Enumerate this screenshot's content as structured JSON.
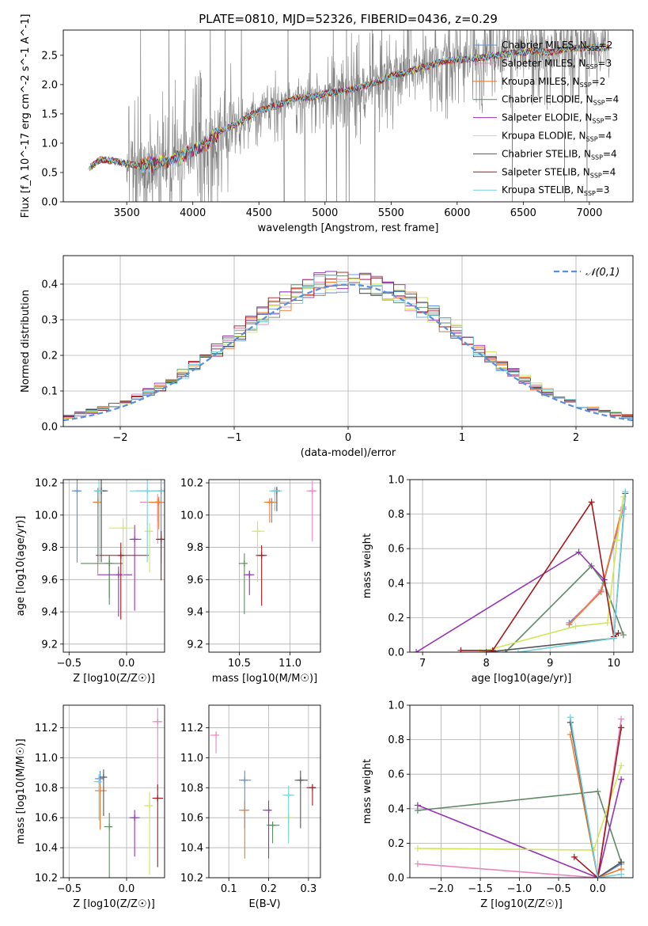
{
  "title": "PLATE=0810, MJD=52326, FIBERID=0436, z=0.29",
  "colors": {
    "series": [
      "#5b8ede",
      "#e985bd",
      "#ee7a2e",
      "#5e8a65",
      "#9633b5",
      "#cfe75a",
      "#555555",
      "#a3181d",
      "#73d1dd"
    ],
    "data": "#808080",
    "gaussian": "#5b8ede",
    "grid": "#b0b0b0"
  },
  "legend": {
    "series": [
      {
        "library": "Chabrier MILES",
        "n": "2"
      },
      {
        "library": "Salpeter MILES",
        "n": "3"
      },
      {
        "library": "Kroupa MILES",
        "n": "2"
      },
      {
        "library": "Chabrier ELODIE",
        "n": "4"
      },
      {
        "library": "Salpeter ELODIE",
        "n": "3"
      },
      {
        "library": "Kroupa ELODIE",
        "n": "4"
      },
      {
        "library": "Chabrier STELIB",
        "n": "4"
      },
      {
        "library": "Salpeter STELIB",
        "n": "4"
      },
      {
        "library": "Kroupa STELIB",
        "n": "3"
      }
    ]
  },
  "chart_data": [
    {
      "id": "spectrum",
      "type": "line",
      "xlabel": "wavelength [Angstrom, rest frame]",
      "ylabel": "Flux [f_λ 10^-17 erg cm^-2 s^-1 A^-1]",
      "xlim": [
        3020,
        7330
      ],
      "ylim": [
        0,
        2.93
      ],
      "xticks": [
        3500,
        4000,
        4500,
        5000,
        5500,
        6000,
        6500,
        7000
      ],
      "yticks": [
        0.0,
        0.5,
        1.0,
        1.5,
        2.0,
        2.5
      ],
      "grid": false,
      "legend_position": "top-right",
      "data_range": [
        3210,
        7150
      ],
      "model_continuum": [
        [
          3210,
          0.57
        ],
        [
          3300,
          0.72
        ],
        [
          3400,
          0.7
        ],
        [
          3500,
          0.65
        ],
        [
          3600,
          0.61
        ],
        [
          3700,
          0.64
        ],
        [
          3800,
          0.69
        ],
        [
          3900,
          0.76
        ],
        [
          4000,
          0.86
        ],
        [
          4100,
          0.98
        ],
        [
          4200,
          1.2
        ],
        [
          4300,
          1.3
        ],
        [
          4400,
          1.42
        ],
        [
          4500,
          1.55
        ],
        [
          4600,
          1.62
        ],
        [
          4700,
          1.7
        ],
        [
          4800,
          1.78
        ],
        [
          4900,
          1.78
        ],
        [
          5000,
          1.85
        ],
        [
          5100,
          1.88
        ],
        [
          5200,
          1.92
        ],
        [
          5300,
          1.98
        ],
        [
          5400,
          2.05
        ],
        [
          5500,
          2.15
        ],
        [
          5600,
          2.2
        ],
        [
          5700,
          2.27
        ],
        [
          5800,
          2.33
        ],
        [
          5900,
          2.4
        ],
        [
          6000,
          2.42
        ],
        [
          6100,
          2.44
        ],
        [
          6200,
          2.46
        ],
        [
          6300,
          2.5
        ],
        [
          6400,
          2.53
        ],
        [
          6500,
          2.55
        ],
        [
          6600,
          2.57
        ],
        [
          6700,
          2.55
        ],
        [
          6800,
          2.6
        ],
        [
          6900,
          2.62
        ],
        [
          7000,
          2.63
        ],
        [
          7150,
          2.63
        ]
      ]
    },
    {
      "id": "residuals",
      "type": "histogram",
      "xlabel": "(data-model)/error",
      "ylabel": "Normed distribution",
      "xlim": [
        -2.5,
        2.5
      ],
      "ylim": [
        0,
        0.48
      ],
      "xticks": [
        -2,
        -1,
        0,
        1,
        2
      ],
      "yticks": [
        0.0,
        0.1,
        0.2,
        0.3,
        0.4
      ],
      "grid": true,
      "legend_position": "top-right",
      "legend_label": "𝒩(0,1)",
      "bins": 50,
      "bin_range": [
        -2.5,
        2.5
      ]
    },
    {
      "id": "age_vs_Z",
      "type": "scatter",
      "xlabel": "Z [log10(Z/Z☉)]",
      "ylabel": "age [log10(age/yr)]",
      "xlim": [
        -0.55,
        0.33
      ],
      "ylim": [
        9.15,
        10.22
      ],
      "xticks": [
        -0.5,
        0.0
      ],
      "xtick_labels": [
        "−0.5",
        "0.0"
      ],
      "yticks": [
        9.2,
        9.4,
        9.6,
        9.8,
        10.0,
        10.2
      ],
      "grid": true,
      "series": [
        {
          "x": [
            -0.43,
            0.3
          ],
          "y": [
            10.15,
            10.15
          ]
        },
        {
          "x": [
            0.27,
            0.27
          ],
          "y": [
            10.08,
            10.08
          ]
        },
        {
          "x": [
            -0.25,
            0.28
          ],
          "y": [
            10.08,
            10.08
          ]
        },
        {
          "x": [
            -0.15,
            -0.15
          ],
          "y": [
            9.7,
            9.7
          ]
        },
        {
          "x": [
            0.07,
            -0.07
          ],
          "y": [
            9.85,
            9.63
          ]
        },
        {
          "x": [
            0.2,
            -0.03
          ],
          "y": [
            9.9,
            9.92
          ]
        },
        {
          "x": [
            -0.22,
            -0.22
          ],
          "y": [
            10.15,
            10.15
          ]
        },
        {
          "x": [
            0.3,
            -0.05
          ],
          "y": [
            9.85,
            9.75
          ]
        },
        {
          "x": [
            -0.24,
            0.18
          ],
          "y": [
            10.15,
            10.15
          ]
        }
      ]
    },
    {
      "id": "age_vs_mass",
      "type": "scatter",
      "xlabel": "mass [log10(M/M☉)]",
      "ylabel": "",
      "xlim": [
        10.2,
        11.3
      ],
      "ylim": [
        9.15,
        10.22
      ],
      "xticks": [
        10.5,
        11.0
      ],
      "yticks": [
        9.2,
        9.4,
        9.6,
        9.8,
        10.0,
        10.2
      ],
      "grid": true,
      "series": [
        {
          "x": [
            10.82
          ],
          "y": [
            10.08
          ]
        },
        {
          "x": [
            11.22
          ],
          "y": [
            10.15
          ]
        },
        {
          "x": [
            10.8
          ],
          "y": [
            10.08
          ]
        },
        {
          "x": [
            10.55
          ],
          "y": [
            9.7
          ]
        },
        {
          "x": [
            10.6
          ],
          "y": [
            9.63
          ]
        },
        {
          "x": [
            10.68
          ],
          "y": [
            9.9
          ]
        },
        {
          "x": [
            10.87
          ],
          "y": [
            10.15
          ]
        },
        {
          "x": [
            10.72
          ],
          "y": [
            9.75
          ]
        },
        {
          "x": [
            10.85
          ],
          "y": [
            10.15
          ]
        }
      ]
    },
    {
      "id": "massweight_vs_age",
      "type": "line",
      "xlabel": "age [log10(age/yr)]",
      "ylabel": "mass weight",
      "xlim": [
        6.8,
        10.3
      ],
      "ylim": [
        0,
        1.0
      ],
      "xticks": [
        7,
        8,
        9,
        10
      ],
      "yticks": [
        0.0,
        0.2,
        0.4,
        0.6,
        0.8,
        1.0
      ],
      "grid": true,
      "series": [
        {
          "x": [
            9.3,
            9.8,
            10.15
          ],
          "y": [
            0.17,
            0.35,
            0.83
          ]
        },
        {
          "x": [
            9.3,
            9.8,
            10.15
          ],
          "y": [
            0.16,
            0.36,
            0.84
          ]
        },
        {
          "x": [
            9.3,
            9.8,
            10.12
          ],
          "y": [
            0.16,
            0.35,
            0.82
          ]
        },
        {
          "x": [
            8.3,
            9.65,
            9.85,
            10.15
          ],
          "y": [
            0.0,
            0.5,
            0.4,
            0.1
          ]
        },
        {
          "x": [
            6.9,
            9.45,
            9.85
          ],
          "y": [
            0.0,
            0.58,
            0.42
          ]
        },
        {
          "x": [
            7.9,
            9.4,
            9.9,
            10.05,
            10.15
          ],
          "y": [
            0.0,
            0.15,
            0.17,
            0.65,
            0.9
          ]
        },
        {
          "x": [
            8.0,
            10.0,
            10.18
          ],
          "y": [
            0.0,
            0.08,
            0.92
          ]
        },
        {
          "x": [
            7.6,
            8.1,
            9.65,
            10.0,
            10.07
          ],
          "y": [
            0.01,
            0.01,
            0.87,
            0.09,
            0.11
          ]
        },
        {
          "x": [
            8.5,
            10.0,
            10.15,
            10.18
          ],
          "y": [
            0.0,
            0.08,
            0.8,
            0.93
          ]
        }
      ]
    },
    {
      "id": "mass_vs_Z",
      "type": "scatter",
      "xlabel": "Z [log10(Z/Z☉)]",
      "ylabel": "mass [log10(M/M☉)]",
      "xlim": [
        -0.55,
        0.33
      ],
      "ylim": [
        10.2,
        11.35
      ],
      "xticks": [
        -0.5,
        0.0
      ],
      "xtick_labels": [
        "−0.5",
        "0.0"
      ],
      "yticks": [
        10.2,
        10.4,
        10.6,
        10.8,
        11.0,
        11.2
      ],
      "grid": true,
      "series": [
        {
          "x": [
            -0.23
          ],
          "y": [
            10.86
          ]
        },
        {
          "x": [
            0.27
          ],
          "y": [
            11.24
          ]
        },
        {
          "x": [
            -0.23
          ],
          "y": [
            10.78
          ]
        },
        {
          "x": [
            -0.15
          ],
          "y": [
            10.54
          ]
        },
        {
          "x": [
            0.07
          ],
          "y": [
            10.6
          ]
        },
        {
          "x": [
            0.2
          ],
          "y": [
            10.68
          ]
        },
        {
          "x": [
            -0.2
          ],
          "y": [
            10.87
          ]
        },
        {
          "x": [
            0.27
          ],
          "y": [
            10.73
          ]
        },
        {
          "x": [
            -0.24
          ],
          "y": [
            10.84
          ]
        }
      ]
    },
    {
      "id": "mass_vs_EBV",
      "type": "scatter",
      "xlabel": "E(B-V)",
      "ylabel": "",
      "xlim": [
        0.05,
        0.33
      ],
      "ylim": [
        10.2,
        11.35
      ],
      "xticks": [
        0.1,
        0.2,
        0.3
      ],
      "yticks": [
        10.2,
        10.4,
        10.6,
        10.8,
        11.0,
        11.2
      ],
      "grid": true,
      "series": [
        {
          "x": [
            0.14
          ],
          "y": [
            10.85
          ]
        },
        {
          "x": [
            0.068
          ],
          "y": [
            11.15
          ]
        },
        {
          "x": [
            0.14
          ],
          "y": [
            10.65
          ]
        },
        {
          "x": [
            0.21
          ],
          "y": [
            10.55
          ]
        },
        {
          "x": [
            0.2
          ],
          "y": [
            10.65
          ]
        },
        {
          "x": [
            0.25
          ],
          "y": [
            10.6
          ]
        },
        {
          "x": [
            0.28
          ],
          "y": [
            10.85
          ]
        },
        {
          "x": [
            0.31
          ],
          "y": [
            10.8
          ]
        },
        {
          "x": [
            0.25
          ],
          "y": [
            10.75
          ]
        }
      ]
    },
    {
      "id": "massweight_vs_Z",
      "type": "line",
      "xlabel": "Z [log10(Z/Z☉)]",
      "ylabel": "mass weight",
      "xlim": [
        -2.4,
        0.45
      ],
      "ylim": [
        0,
        1.0
      ],
      "xticks": [
        -2.0,
        -1.5,
        -1.0,
        -0.5,
        0.0
      ],
      "xtick_labels": [
        "−2.0",
        "−1.5",
        "−1.0",
        "−0.5",
        "0.0"
      ],
      "yticks": [
        0.0,
        0.2,
        0.4,
        0.6,
        0.8,
        1.0
      ],
      "grid": true,
      "series": [
        {
          "x": [
            -0.35,
            0.0,
            0.3
          ],
          "y": [
            0.9,
            0.0,
            0.08
          ]
        },
        {
          "x": [
            -2.3,
            0.0,
            0.3
          ],
          "y": [
            0.08,
            0.0,
            0.92
          ]
        },
        {
          "x": [
            -0.35,
            0.0,
            0.3
          ],
          "y": [
            0.83,
            0.0,
            0.05
          ]
        },
        {
          "x": [
            -2.3,
            0.0,
            0.3
          ],
          "y": [
            0.39,
            0.5,
            0.09
          ]
        },
        {
          "x": [
            -2.3,
            0.0,
            0.3
          ],
          "y": [
            0.42,
            0.0,
            0.57
          ]
        },
        {
          "x": [
            -2.3,
            -0.05,
            0.3
          ],
          "y": [
            0.17,
            0.16,
            0.65
          ]
        },
        {
          "x": [
            -0.35,
            0.0,
            0.3
          ],
          "y": [
            0.9,
            0.0,
            0.09
          ]
        },
        {
          "x": [
            -0.3,
            0.0,
            0.3
          ],
          "y": [
            0.12,
            0.0,
            0.87
          ]
        },
        {
          "x": [
            -0.35,
            0.0,
            0.3
          ],
          "y": [
            0.93,
            0.0,
            0.02
          ]
        }
      ]
    }
  ]
}
